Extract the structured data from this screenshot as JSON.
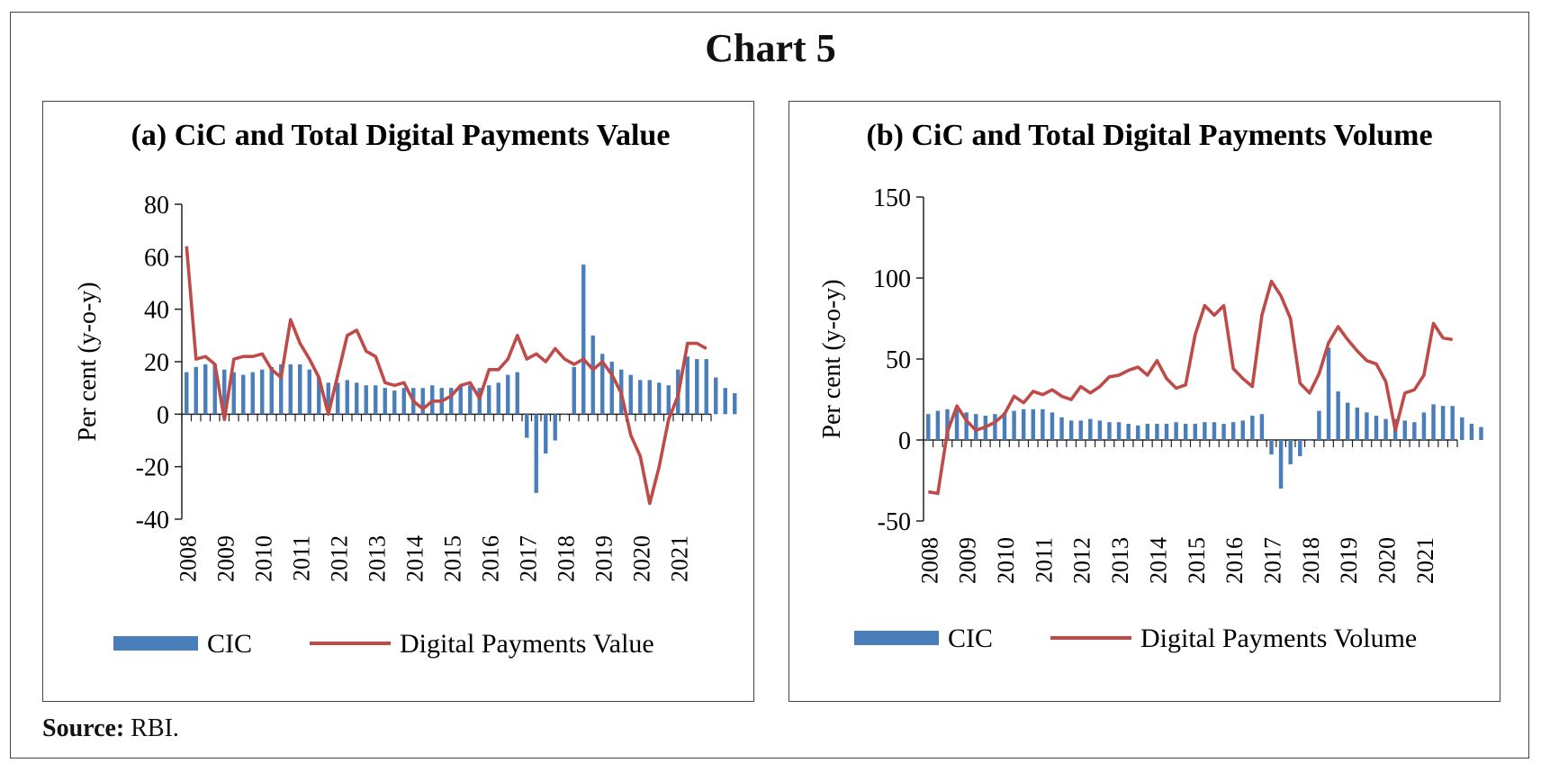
{
  "title": "Chart 5",
  "source": {
    "label": "Source:",
    "text": " RBI."
  },
  "chart_data": [
    {
      "type": "bar+line",
      "title": "(a) CiC and Total Digital Payments Value",
      "ylabel": "Per cent (y-o-y)",
      "ylim": [
        -40,
        80
      ],
      "yticks": [
        -40,
        -20,
        0,
        20,
        40,
        60,
        80
      ],
      "years": [
        "2008",
        "2009",
        "2010",
        "2011",
        "2012",
        "2013",
        "2014",
        "2015",
        "2016",
        "2017",
        "2018",
        "2019",
        "2020",
        "2021"
      ],
      "periods_per_year": 4,
      "legend": [
        "CIC",
        "Digital Payments Value"
      ],
      "colors": {
        "bar": "#4a7ebb",
        "line": "#be4b48"
      },
      "series": [
        {
          "name": "CIC",
          "kind": "bar",
          "values": [
            16,
            18,
            19,
            19,
            17,
            16,
            15,
            16,
            17,
            18,
            19,
            19,
            19,
            17,
            14,
            12,
            12,
            13,
            12,
            11,
            11,
            10,
            9,
            10,
            10,
            10,
            11,
            10,
            10,
            11,
            11,
            10,
            11,
            12,
            15,
            16,
            -9,
            -30,
            -15,
            -10,
            0,
            18,
            57,
            30,
            23,
            20,
            17,
            15,
            13,
            13,
            12,
            11,
            17,
            22,
            21,
            21,
            14,
            10,
            8
          ]
        },
        {
          "name": "Digital Payments Value",
          "kind": "line",
          "values": [
            64,
            21,
            22,
            19,
            -2,
            21,
            22,
            22,
            23,
            17,
            14,
            36,
            27,
            21,
            14,
            0,
            15,
            30,
            32,
            24,
            22,
            12,
            11,
            12,
            5,
            2,
            5,
            5,
            7,
            11,
            12,
            6,
            17,
            17,
            21,
            30,
            21,
            23,
            20,
            25,
            21,
            19,
            21,
            17,
            20,
            15,
            8,
            -8,
            -16,
            -34,
            -20,
            -2,
            7,
            27,
            27,
            25
          ]
        }
      ]
    },
    {
      "type": "bar+line",
      "title": "(b) CiC and Total Digital Payments Volume",
      "ylabel": "Per cent (y-o-y)",
      "ylim": [
        -50,
        150
      ],
      "yticks": [
        -50,
        0,
        50,
        100,
        150
      ],
      "years": [
        "2008",
        "2009",
        "2010",
        "2011",
        "2012",
        "2013",
        "2014",
        "2015",
        "2016",
        "2017",
        "2018",
        "2019",
        "2020",
        "2021"
      ],
      "periods_per_year": 4,
      "legend": [
        "CIC",
        "Digital Payments Volume"
      ],
      "colors": {
        "bar": "#4a7ebb",
        "line": "#be4b48"
      },
      "series": [
        {
          "name": "CIC",
          "kind": "bar",
          "values": [
            16,
            18,
            19,
            19,
            17,
            16,
            15,
            16,
            17,
            18,
            19,
            19,
            19,
            17,
            14,
            12,
            12,
            13,
            12,
            11,
            11,
            10,
            9,
            10,
            10,
            10,
            11,
            10,
            10,
            11,
            11,
            10,
            11,
            12,
            15,
            16,
            -9,
            -30,
            -15,
            -10,
            0,
            18,
            57,
            30,
            23,
            20,
            17,
            15,
            13,
            13,
            12,
            11,
            17,
            22,
            21,
            21,
            14,
            10,
            8
          ]
        },
        {
          "name": "Digital Payments Volume",
          "kind": "line",
          "values": [
            -32,
            -33,
            5,
            21,
            12,
            6,
            8,
            11,
            16,
            27,
            23,
            30,
            28,
            31,
            27,
            25,
            33,
            29,
            33,
            39,
            40,
            43,
            45,
            40,
            49,
            38,
            32,
            34,
            65,
            83,
            77,
            83,
            44,
            38,
            33,
            77,
            98,
            89,
            75,
            35,
            29,
            41,
            60,
            70,
            62,
            55,
            49,
            47,
            36,
            6,
            29,
            31,
            40,
            72,
            63,
            62
          ]
        }
      ]
    }
  ]
}
